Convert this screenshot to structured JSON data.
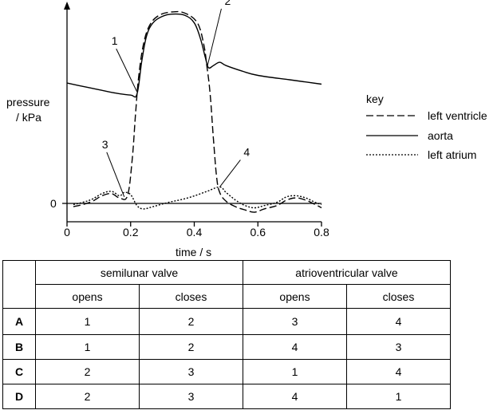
{
  "chart_data": {
    "type": "line",
    "xlabel": "time / s",
    "ylabel": "pressure / kPa",
    "x_ticks": [
      "0",
      "0.2",
      "0.4",
      "0.6",
      "0.8"
    ],
    "y_ticks": [
      "0"
    ],
    "xlim": [
      0,
      0.8
    ],
    "ylim": [
      -1,
      18
    ],
    "legend_title": "key",
    "legend_position": "right",
    "series": [
      {
        "name": "left ventricle",
        "style": "dashed",
        "points": [
          [
            0.02,
            -0.3
          ],
          [
            0.05,
            -0.1
          ],
          [
            0.08,
            0.2
          ],
          [
            0.11,
            0.7
          ],
          [
            0.14,
            0.9
          ],
          [
            0.165,
            0.5
          ],
          [
            0.19,
            0.7
          ],
          [
            0.205,
            4
          ],
          [
            0.215,
            8
          ],
          [
            0.225,
            11.5
          ],
          [
            0.24,
            14.5
          ],
          [
            0.26,
            16.3
          ],
          [
            0.29,
            17.2
          ],
          [
            0.33,
            17.5
          ],
          [
            0.37,
            17.4
          ],
          [
            0.41,
            16.5
          ],
          [
            0.43,
            14.5
          ],
          [
            0.44,
            12.5
          ],
          [
            0.45,
            10
          ],
          [
            0.46,
            6
          ],
          [
            0.47,
            2.5
          ],
          [
            0.48,
            1
          ],
          [
            0.5,
            0.2
          ],
          [
            0.53,
            -0.3
          ],
          [
            0.56,
            -0.6
          ],
          [
            0.59,
            -0.8
          ],
          [
            0.62,
            -0.5
          ],
          [
            0.66,
            -0.2
          ],
          [
            0.69,
            0.3
          ],
          [
            0.72,
            0.5
          ],
          [
            0.75,
            0.3
          ],
          [
            0.78,
            -0.1
          ],
          [
            0.8,
            -0.4
          ]
        ]
      },
      {
        "name": "aorta",
        "style": "solid",
        "points": [
          [
            0,
            11
          ],
          [
            0.05,
            10.7
          ],
          [
            0.1,
            10.4
          ],
          [
            0.15,
            10.1
          ],
          [
            0.2,
            9.9
          ],
          [
            0.22,
            10
          ],
          [
            0.235,
            13
          ],
          [
            0.25,
            15.3
          ],
          [
            0.27,
            16.5
          ],
          [
            0.3,
            17.1
          ],
          [
            0.33,
            17.3
          ],
          [
            0.37,
            17.2
          ],
          [
            0.4,
            16.5
          ],
          [
            0.42,
            15
          ],
          [
            0.435,
            13.3
          ],
          [
            0.445,
            12.4
          ],
          [
            0.46,
            12.6
          ],
          [
            0.48,
            12.9
          ],
          [
            0.5,
            12.6
          ],
          [
            0.55,
            12.1
          ],
          [
            0.6,
            11.7
          ],
          [
            0.7,
            11.3
          ],
          [
            0.8,
            10.9
          ]
        ]
      },
      {
        "name": "left atrium",
        "style": "dotted",
        "points": [
          [
            0.02,
            -0.1
          ],
          [
            0.05,
            0.1
          ],
          [
            0.08,
            0.4
          ],
          [
            0.11,
            0.9
          ],
          [
            0.14,
            1.1
          ],
          [
            0.165,
            0.7
          ],
          [
            0.18,
            1
          ],
          [
            0.2,
            0.8
          ],
          [
            0.22,
            -0.2
          ],
          [
            0.24,
            -0.5
          ],
          [
            0.27,
            -0.3
          ],
          [
            0.32,
            0.1
          ],
          [
            0.38,
            0.5
          ],
          [
            0.44,
            1.1
          ],
          [
            0.48,
            1.5
          ],
          [
            0.5,
            1
          ],
          [
            0.53,
            0.3
          ],
          [
            0.56,
            -0.2
          ],
          [
            0.59,
            -0.4
          ],
          [
            0.62,
            -0.2
          ],
          [
            0.66,
            0.1
          ],
          [
            0.69,
            0.6
          ],
          [
            0.72,
            0.7
          ],
          [
            0.75,
            0.5
          ],
          [
            0.78,
            0.1
          ],
          [
            0.8,
            -0.1
          ]
        ]
      }
    ],
    "annotations": [
      {
        "text": "1",
        "x": 0.22,
        "y": 10.2
      },
      {
        "text": "2",
        "x": 0.44,
        "y": 12.4
      },
      {
        "text": "3",
        "x": 0.18,
        "y": 0.6
      },
      {
        "text": "4",
        "x": 0.48,
        "y": 1.5
      }
    ]
  },
  "table": {
    "group_headers": [
      "semilunar valve",
      "atrioventricular valve"
    ],
    "sub_headers": [
      "opens",
      "closes",
      "opens",
      "closes"
    ],
    "rows": [
      {
        "label": "A",
        "values": [
          "1",
          "2",
          "3",
          "4"
        ]
      },
      {
        "label": "B",
        "values": [
          "1",
          "2",
          "4",
          "3"
        ]
      },
      {
        "label": "C",
        "values": [
          "2",
          "3",
          "1",
          "4"
        ]
      },
      {
        "label": "D",
        "values": [
          "2",
          "3",
          "4",
          "1"
        ]
      }
    ]
  }
}
